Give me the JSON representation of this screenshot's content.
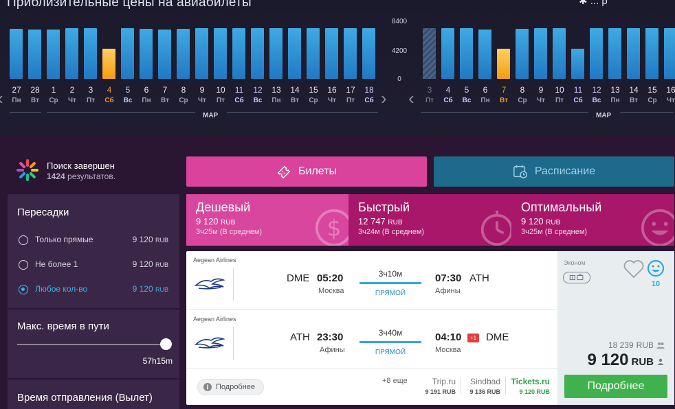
{
  "chart": {
    "title": "Приблизительные цены на авиабилеты",
    "top_right_text": "✱ ... р",
    "y_axis": {
      "max": "8400",
      "mid": "4200",
      "min": "0"
    },
    "month_label_left": "МАР",
    "month_label_right": "МАР",
    "colors": {
      "bar_blue": "#2a8fd6",
      "bar_selected": "#f39c12"
    }
  },
  "chart_data": [
    {
      "type": "bar",
      "title": "",
      "ylim": [
        0,
        8400
      ],
      "categories": [
        "27 Пн",
        "28 Вт",
        "1 Ср",
        "2 Чт",
        "3 Пт",
        "4 Сб",
        "5 Вс",
        "6 Пн",
        "7 Вт",
        "8 Ср",
        "9 Чт",
        "10 Пт",
        "11 Сб",
        "12 Вс",
        "13 Пн",
        "14 Вт",
        "15 Ср",
        "16 Чт",
        "17 Пт",
        "18 Сб"
      ],
      "days": [
        "27",
        "28",
        "1",
        "2",
        "3",
        "4",
        "5",
        "6",
        "7",
        "8",
        "9",
        "10",
        "11",
        "12",
        "13",
        "14",
        "15",
        "16",
        "17",
        "18"
      ],
      "weekdays": [
        "Пн",
        "Вт",
        "Ср",
        "Чт",
        "Пт",
        "Сб",
        "Вс",
        "Пн",
        "Вт",
        "Ср",
        "Чт",
        "Пт",
        "Сб",
        "Вс",
        "Пн",
        "Вт",
        "Ср",
        "Чт",
        "Пт",
        "Сб"
      ],
      "values": [
        8200,
        8100,
        8100,
        8300,
        8300,
        4900,
        8300,
        8200,
        8100,
        8200,
        8300,
        8300,
        8300,
        8300,
        8300,
        8300,
        8300,
        8300,
        8300,
        8300
      ],
      "selected_index": 5
    },
    {
      "type": "bar",
      "title": "",
      "ylim": [
        0,
        8400
      ],
      "categories": [
        "3 Пт",
        "4 Сб",
        "5 Вс",
        "6 Пн",
        "7 Вт",
        "8 Ср",
        "9 Чт",
        "10 Пт",
        "11 Сб",
        "12 Вс",
        "13 Пн",
        "14 Вт",
        "15 Ср",
        "16 Чт"
      ],
      "days": [
        "3",
        "4",
        "5",
        "6",
        "7",
        "8",
        "9",
        "10",
        "11",
        "12",
        "13",
        "14",
        "15",
        "16"
      ],
      "weekdays": [
        "Пт",
        "Сб",
        "Вс",
        "Пн",
        "Вт",
        "Ср",
        "Чт",
        "Пт",
        "Сб",
        "Вс",
        "Пн",
        "Вт",
        "Ср",
        "Чт"
      ],
      "values": [
        8300,
        8300,
        8300,
        8100,
        4900,
        8200,
        8300,
        8300,
        4900,
        8300,
        8300,
        8300,
        8300,
        8300
      ],
      "selected_index": 4,
      "past_index": 0
    }
  ],
  "status": {
    "title": "Поиск завершен",
    "count": "1424",
    "count_suffix": "результатов."
  },
  "filters": {
    "transfers_heading": "Пересадки",
    "options": [
      {
        "label": "Только прямые",
        "price": "9 120",
        "currency": "RUB"
      },
      {
        "label": "Не более 1",
        "price": "9 120",
        "currency": "RUB"
      },
      {
        "label": "Любое кол-во",
        "price": "9 120",
        "currency": "RUB"
      }
    ],
    "max_time_heading": "Макс. время в пути",
    "max_time_value": "57h15m",
    "max_time_fraction": 1.0,
    "departure_heading": "Время отправления (Вылет)"
  },
  "tabs": {
    "tickets": "Билеты",
    "schedule": "Расписание"
  },
  "sort": [
    {
      "title": "Дешевый",
      "price": "9 120",
      "currency": "RUB",
      "time": "3ч25м (В среднем)"
    },
    {
      "title": "Быстрый",
      "price": "12 747",
      "currency": "RUB",
      "time": "3ч24м (В среднем)"
    },
    {
      "title": "Оптимальный",
      "price": "9 120",
      "currency": "RUB",
      "time": "3ч25м (В среднем)"
    }
  ],
  "ticket": {
    "segments": [
      {
        "airline": "Aegean Airlines",
        "from_code": "DME",
        "dep_time": "05:20",
        "from_city": "Москва",
        "duration": "3ч10м",
        "direct": "ПРЯМОЙ",
        "arr_time": "07:30",
        "to_code": "ATH",
        "to_city": "Афины",
        "next_day": ""
      },
      {
        "airline": "Aegean Airlines",
        "from_code": "ATH",
        "dep_time": "23:30",
        "from_city": "Афины",
        "duration": "3ч40м",
        "direct": "ПРЯМОЙ",
        "arr_time": "04:10",
        "to_code": "DME",
        "to_city": "Москва",
        "next_day": "+1"
      }
    ],
    "details_chip": "Подробнее",
    "more_offers": "+8 еще",
    "agencies": [
      {
        "name": "Trip.ru",
        "price": "9 191 RUB"
      },
      {
        "name": "Sindbad",
        "price": "9 136 RUB"
      },
      {
        "name": "Tickets.ru",
        "price": "9 120 RUB"
      }
    ],
    "class": "Эконом",
    "rating": "10",
    "price_total": "18 239",
    "price_total_currency": "RUB",
    "price": "9 120",
    "price_currency": "RUB",
    "buy_button": "Подробнее"
  }
}
